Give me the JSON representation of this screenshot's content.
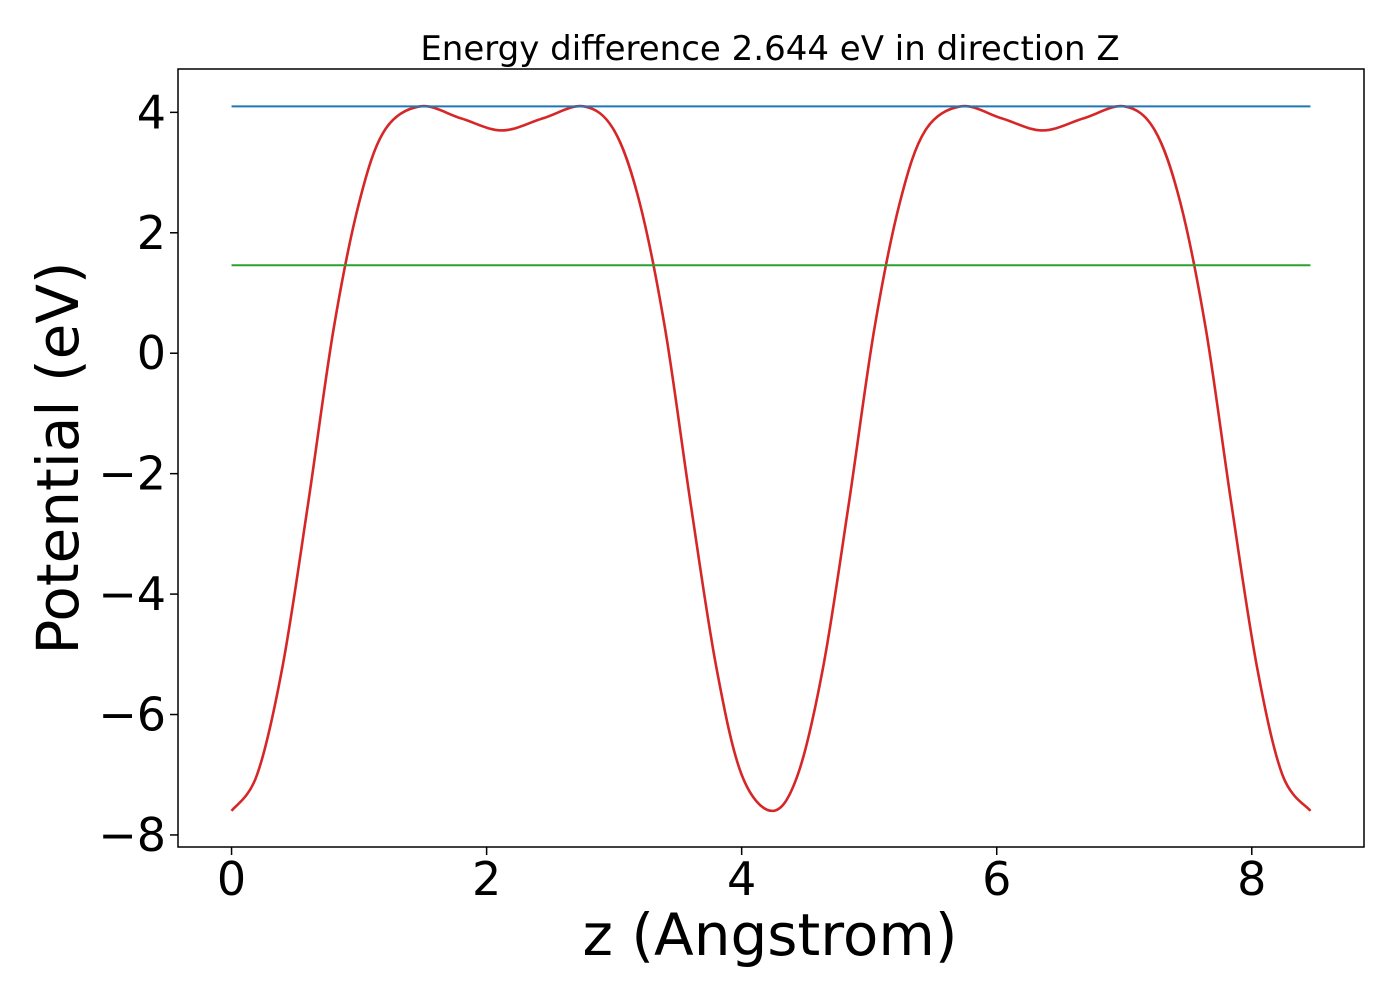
{
  "chart_data": {
    "type": "line",
    "title": "Energy difference 2.644 eV in direction Z",
    "xlabel": "z (Angstrom)",
    "ylabel": "Potential (eV)",
    "xlim": [
      -0.42,
      8.88
    ],
    "ylim": [
      -8.2,
      4.72
    ],
    "xticks": [
      0,
      2,
      4,
      6,
      8
    ],
    "xtick_labels": [
      "0",
      "2",
      "4",
      "6",
      "8"
    ],
    "yticks": [
      -8,
      -6,
      -4,
      -2,
      0,
      2,
      4
    ],
    "ytick_labels": [
      "−8",
      "−6",
      "−4",
      "−2",
      "0",
      "2",
      "4"
    ],
    "grid": false,
    "series": [
      {
        "color": "#d62728",
        "x": [
          0.0,
          0.2,
          0.4,
          0.6,
          0.8,
          1.0,
          1.2,
          1.48,
          1.8,
          2.12,
          2.44,
          2.76,
          3.0,
          3.2,
          3.4,
          3.6,
          3.8,
          4.0,
          4.24,
          4.44,
          4.64,
          4.84,
          5.04,
          5.24,
          5.44,
          5.72,
          6.04,
          6.36,
          6.68,
          7.0,
          7.24,
          7.44,
          7.64,
          7.84,
          8.04,
          8.24,
          8.46
        ],
        "y": [
          -7.6,
          -7.0,
          -5.2,
          -2.5,
          0.4,
          2.5,
          3.7,
          4.1,
          3.9,
          3.7,
          3.9,
          4.1,
          3.7,
          2.5,
          0.4,
          -2.5,
          -5.2,
          -7.0,
          -7.6,
          -7.0,
          -5.2,
          -2.5,
          0.4,
          2.5,
          3.7,
          4.1,
          3.9,
          3.7,
          3.9,
          4.1,
          3.7,
          2.5,
          0.4,
          -2.5,
          -5.2,
          -7.0,
          -7.6
        ]
      },
      {
        "color": "#1f77b4",
        "x": [
          0.0,
          8.46
        ],
        "y": [
          4.1,
          4.1
        ]
      },
      {
        "color": "#2ca02c",
        "x": [
          0.0,
          8.46
        ],
        "y": [
          1.46,
          1.46
        ]
      }
    ]
  }
}
